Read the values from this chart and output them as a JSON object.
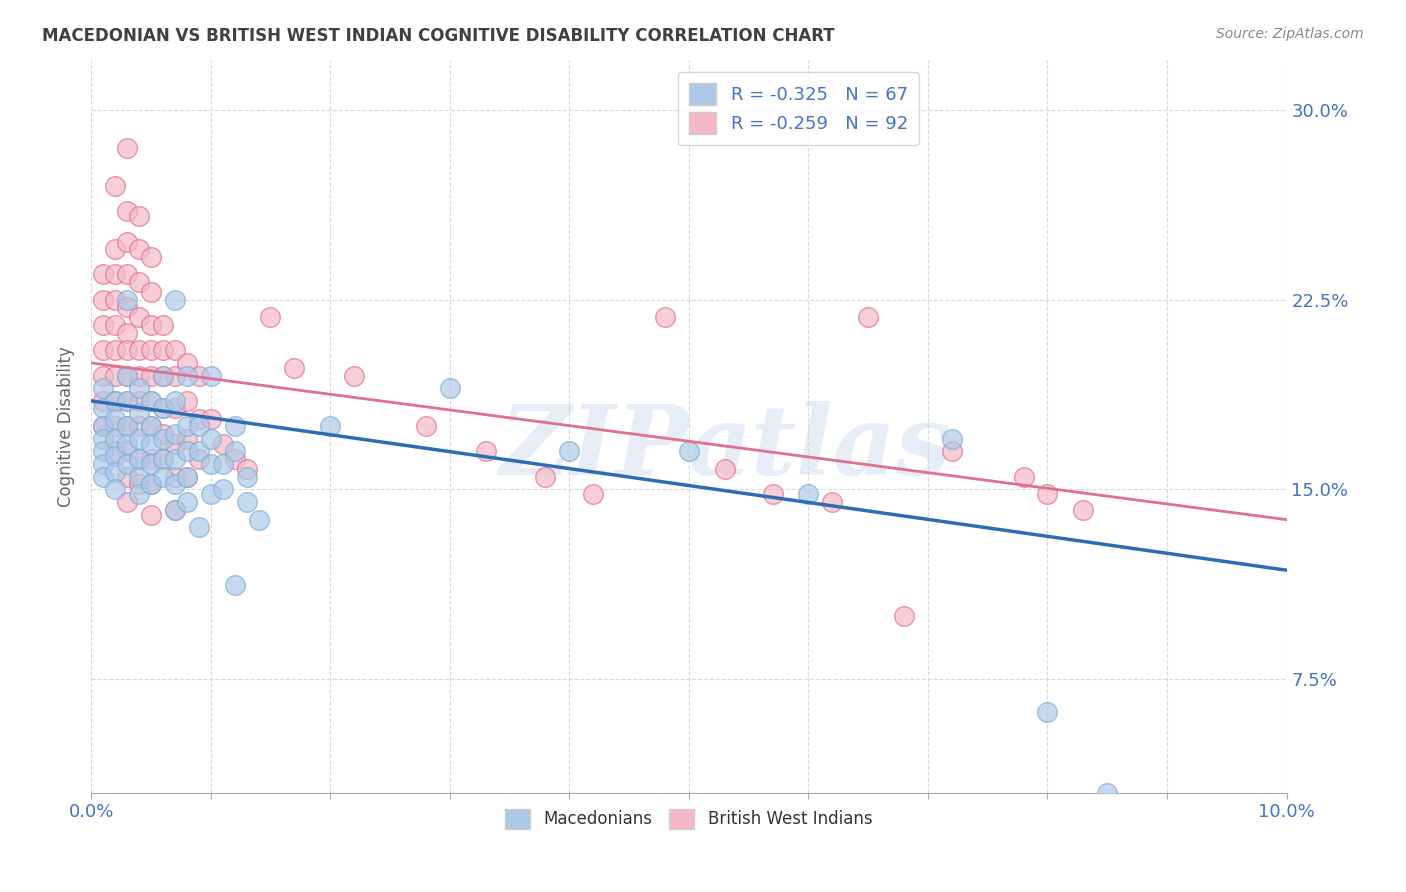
{
  "title": "MACEDONIAN VS BRITISH WEST INDIAN COGNITIVE DISABILITY CORRELATION CHART",
  "source": "Source: ZipAtlas.com",
  "ylabel": "Cognitive Disability",
  "ytick_values": [
    0.075,
    0.15,
    0.225,
    0.3
  ],
  "ytick_labels": [
    "7.5%",
    "15.0%",
    "22.5%",
    "30.0%"
  ],
  "xlim": [
    0.0,
    0.1
  ],
  "ylim": [
    0.03,
    0.32
  ],
  "macedonians": {
    "color": "#aec9e8",
    "edge_color": "#7bafd4",
    "line_color": "#2e6db4",
    "points": [
      [
        0.001,
        0.19
      ],
      [
        0.001,
        0.182
      ],
      [
        0.001,
        0.175
      ],
      [
        0.001,
        0.17
      ],
      [
        0.001,
        0.165
      ],
      [
        0.001,
        0.16
      ],
      [
        0.001,
        0.155
      ],
      [
        0.002,
        0.185
      ],
      [
        0.002,
        0.178
      ],
      [
        0.002,
        0.17
      ],
      [
        0.002,
        0.163
      ],
      [
        0.002,
        0.157
      ],
      [
        0.002,
        0.15
      ],
      [
        0.003,
        0.225
      ],
      [
        0.003,
        0.195
      ],
      [
        0.003,
        0.185
      ],
      [
        0.003,
        0.175
      ],
      [
        0.003,
        0.168
      ],
      [
        0.003,
        0.16
      ],
      [
        0.004,
        0.19
      ],
      [
        0.004,
        0.18
      ],
      [
        0.004,
        0.17
      ],
      [
        0.004,
        0.162
      ],
      [
        0.004,
        0.155
      ],
      [
        0.004,
        0.148
      ],
      [
        0.005,
        0.185
      ],
      [
        0.005,
        0.175
      ],
      [
        0.005,
        0.168
      ],
      [
        0.005,
        0.16
      ],
      [
        0.005,
        0.152
      ],
      [
        0.006,
        0.195
      ],
      [
        0.006,
        0.182
      ],
      [
        0.006,
        0.17
      ],
      [
        0.006,
        0.162
      ],
      [
        0.006,
        0.155
      ],
      [
        0.007,
        0.225
      ],
      [
        0.007,
        0.185
      ],
      [
        0.007,
        0.172
      ],
      [
        0.007,
        0.162
      ],
      [
        0.007,
        0.152
      ],
      [
        0.007,
        0.142
      ],
      [
        0.008,
        0.195
      ],
      [
        0.008,
        0.175
      ],
      [
        0.008,
        0.165
      ],
      [
        0.008,
        0.155
      ],
      [
        0.008,
        0.145
      ],
      [
        0.009,
        0.175
      ],
      [
        0.009,
        0.165
      ],
      [
        0.009,
        0.135
      ],
      [
        0.01,
        0.195
      ],
      [
        0.01,
        0.17
      ],
      [
        0.01,
        0.16
      ],
      [
        0.01,
        0.148
      ],
      [
        0.011,
        0.16
      ],
      [
        0.011,
        0.15
      ],
      [
        0.012,
        0.175
      ],
      [
        0.012,
        0.165
      ],
      [
        0.012,
        0.112
      ],
      [
        0.013,
        0.155
      ],
      [
        0.013,
        0.145
      ],
      [
        0.014,
        0.138
      ],
      [
        0.02,
        0.175
      ],
      [
        0.03,
        0.19
      ],
      [
        0.04,
        0.165
      ],
      [
        0.05,
        0.165
      ],
      [
        0.06,
        0.148
      ],
      [
        0.072,
        0.17
      ],
      [
        0.08,
        0.062
      ],
      [
        0.085,
        0.03
      ]
    ],
    "trendline": [
      [
        0.0,
        0.185
      ],
      [
        0.1,
        0.118
      ]
    ]
  },
  "british_west_indians": {
    "color": "#f4b8c8",
    "edge_color": "#e07090",
    "line_color": "#e07090",
    "points": [
      [
        0.001,
        0.235
      ],
      [
        0.001,
        0.225
      ],
      [
        0.001,
        0.215
      ],
      [
        0.001,
        0.205
      ],
      [
        0.001,
        0.195
      ],
      [
        0.001,
        0.185
      ],
      [
        0.001,
        0.175
      ],
      [
        0.002,
        0.27
      ],
      [
        0.002,
        0.245
      ],
      [
        0.002,
        0.235
      ],
      [
        0.002,
        0.225
      ],
      [
        0.002,
        0.215
      ],
      [
        0.002,
        0.205
      ],
      [
        0.002,
        0.195
      ],
      [
        0.002,
        0.185
      ],
      [
        0.002,
        0.175
      ],
      [
        0.002,
        0.165
      ],
      [
        0.003,
        0.285
      ],
      [
        0.003,
        0.26
      ],
      [
        0.003,
        0.248
      ],
      [
        0.003,
        0.235
      ],
      [
        0.003,
        0.222
      ],
      [
        0.003,
        0.212
      ],
      [
        0.003,
        0.205
      ],
      [
        0.003,
        0.195
      ],
      [
        0.003,
        0.185
      ],
      [
        0.003,
        0.175
      ],
      [
        0.003,
        0.165
      ],
      [
        0.003,
        0.155
      ],
      [
        0.003,
        0.145
      ],
      [
        0.004,
        0.258
      ],
      [
        0.004,
        0.245
      ],
      [
        0.004,
        0.232
      ],
      [
        0.004,
        0.218
      ],
      [
        0.004,
        0.205
      ],
      [
        0.004,
        0.195
      ],
      [
        0.004,
        0.185
      ],
      [
        0.004,
        0.175
      ],
      [
        0.004,
        0.162
      ],
      [
        0.004,
        0.152
      ],
      [
        0.005,
        0.242
      ],
      [
        0.005,
        0.228
      ],
      [
        0.005,
        0.215
      ],
      [
        0.005,
        0.205
      ],
      [
        0.005,
        0.195
      ],
      [
        0.005,
        0.185
      ],
      [
        0.005,
        0.175
      ],
      [
        0.005,
        0.162
      ],
      [
        0.005,
        0.152
      ],
      [
        0.005,
        0.14
      ],
      [
        0.006,
        0.215
      ],
      [
        0.006,
        0.205
      ],
      [
        0.006,
        0.195
      ],
      [
        0.006,
        0.182
      ],
      [
        0.006,
        0.172
      ],
      [
        0.006,
        0.162
      ],
      [
        0.007,
        0.205
      ],
      [
        0.007,
        0.195
      ],
      [
        0.007,
        0.182
      ],
      [
        0.007,
        0.168
      ],
      [
        0.007,
        0.155
      ],
      [
        0.007,
        0.142
      ],
      [
        0.008,
        0.2
      ],
      [
        0.008,
        0.185
      ],
      [
        0.008,
        0.17
      ],
      [
        0.008,
        0.155
      ],
      [
        0.009,
        0.195
      ],
      [
        0.009,
        0.178
      ],
      [
        0.009,
        0.162
      ],
      [
        0.01,
        0.178
      ],
      [
        0.011,
        0.168
      ],
      [
        0.012,
        0.162
      ],
      [
        0.013,
        0.158
      ],
      [
        0.015,
        0.218
      ],
      [
        0.017,
        0.198
      ],
      [
        0.022,
        0.195
      ],
      [
        0.028,
        0.175
      ],
      [
        0.033,
        0.165
      ],
      [
        0.038,
        0.155
      ],
      [
        0.042,
        0.148
      ],
      [
        0.048,
        0.218
      ],
      [
        0.053,
        0.158
      ],
      [
        0.057,
        0.148
      ],
      [
        0.062,
        0.145
      ],
      [
        0.065,
        0.218
      ],
      [
        0.068,
        0.1
      ],
      [
        0.072,
        0.165
      ],
      [
        0.078,
        0.155
      ],
      [
        0.08,
        0.148
      ],
      [
        0.083,
        0.142
      ]
    ],
    "trendline": [
      [
        0.0,
        0.2
      ],
      [
        0.1,
        0.138
      ]
    ]
  },
  "watermark": "ZIP atlas",
  "background_color": "#ffffff",
  "grid_color": "#d8d8d8",
  "title_color": "#404040",
  "tick_label_color": "#4472c4"
}
